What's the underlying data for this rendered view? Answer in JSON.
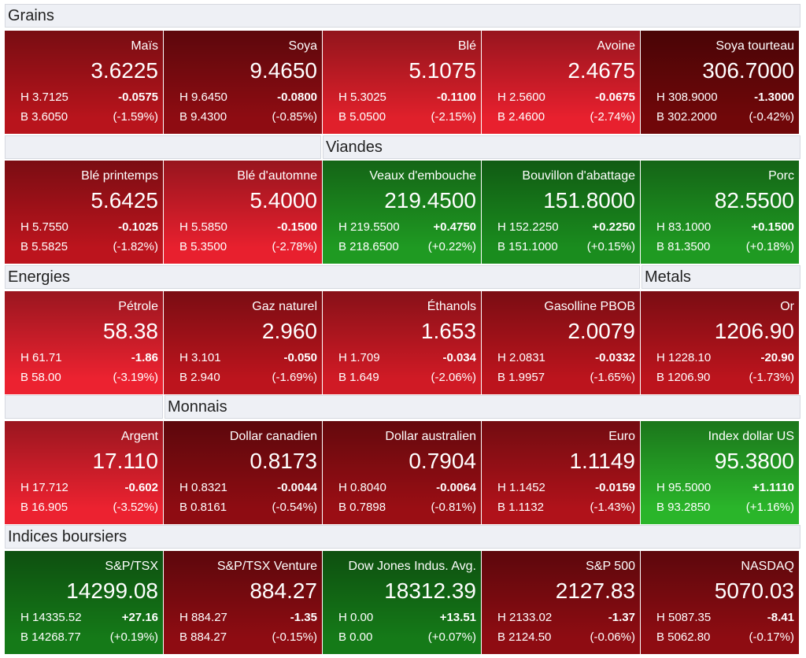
{
  "sections": [
    "Grains",
    "Viandes",
    "Energies",
    "Metals",
    "Monnais",
    "Indices boursiers"
  ],
  "rows": [
    [
      {
        "name": "Maïs",
        "price": "3.6225",
        "high": "H 3.7125",
        "low": "B 3.6050",
        "change": "-0.0575",
        "change_pct": "(-1.59%)",
        "color": "#b8141c"
      },
      {
        "name": "Soya",
        "price": "9.4650",
        "high": "H 9.6450",
        "low": "B 9.4300",
        "change": "-0.0800",
        "change_pct": "(-0.85%)",
        "color": "#8e0c12"
      },
      {
        "name": "Blé",
        "price": "5.1075",
        "high": "H 5.3025",
        "low": "B 5.0500",
        "change": "-0.1100",
        "change_pct": "(-2.15%)",
        "color": "#e0202b"
      },
      {
        "name": "Avoine",
        "price": "2.4675",
        "high": "H 2.5600",
        "low": "B 2.4600",
        "change": "-0.0675",
        "change_pct": "(-2.74%)",
        "color": "#e8202e"
      },
      {
        "name": "Soya tourteau",
        "price": "306.7000",
        "high": "H 308.9000",
        "low": "B 302.2000",
        "change": "-1.3000",
        "change_pct": "(-0.42%)",
        "color": "#700709"
      }
    ],
    [
      {
        "name": "Blé printemps",
        "price": "5.6425",
        "high": "H 5.7550",
        "low": "B 5.5825",
        "change": "-0.1025",
        "change_pct": "(-1.82%)",
        "color": "#bc141d"
      },
      {
        "name": "Blé d'automne",
        "price": "5.4000",
        "high": "H 5.5850",
        "low": "B 5.3500",
        "change": "-0.1500",
        "change_pct": "(-2.78%)",
        "color": "#e8202e"
      },
      {
        "name": "Veaux d'embouche",
        "price": "219.4500",
        "high": "H 219.5500",
        "low": "B 218.6500",
        "change": "+0.4750",
        "change_pct": "(+0.22%)",
        "color": "#1f9a22"
      },
      {
        "name": "Bouvillon d'abattage",
        "price": "151.8000",
        "high": "H 152.2250",
        "low": "B 151.1000",
        "change": "+0.2250",
        "change_pct": "(+0.15%)",
        "color": "#1a8c1e"
      },
      {
        "name": "Porc",
        "price": "82.5500",
        "high": "H 83.1000",
        "low": "B 81.3500",
        "change": "+0.1500",
        "change_pct": "(+0.18%)",
        "color": "#1f9a22"
      }
    ],
    [
      {
        "name": "Pétrole",
        "price": "58.38",
        "high": "H 61.71",
        "low": "B 58.00",
        "change": "-1.86",
        "change_pct": "(-3.19%)",
        "color": "#ec2230"
      },
      {
        "name": "Gaz naturel",
        "price": "2.960",
        "high": "H 3.101",
        "low": "B 2.940",
        "change": "-0.050",
        "change_pct": "(-1.69%)",
        "color": "#bc141d"
      },
      {
        "name": "Éthanols",
        "price": "1.653",
        "high": "H 1.709",
        "low": "B 1.649",
        "change": "-0.034",
        "change_pct": "(-2.06%)",
        "color": "#d01a25"
      },
      {
        "name": "Gasolline PBOB",
        "price": "2.0079",
        "high": "H 2.0831",
        "low": "B 1.9957",
        "change": "-0.0332",
        "change_pct": "(-1.65%)",
        "color": "#bc141d"
      },
      {
        "name": "Or",
        "price": "1206.90",
        "high": "H 1228.10",
        "low": "B 1206.90",
        "change": "-20.90",
        "change_pct": "(-1.73%)",
        "color": "#bc141d"
      }
    ],
    [
      {
        "name": "Argent",
        "price": "17.110",
        "high": "H 17.712",
        "low": "B 16.905",
        "change": "-0.602",
        "change_pct": "(-3.52%)",
        "color": "#ec2230"
      },
      {
        "name": "Dollar canadien",
        "price": "0.8173",
        "high": "H 0.8321",
        "low": "B 0.8161",
        "change": "-0.0044",
        "change_pct": "(-0.54%)",
        "color": "#8e0c12"
      },
      {
        "name": "Dollar australien",
        "price": "0.7904",
        "high": "H 0.8040",
        "low": "B 0.7898",
        "change": "-0.0064",
        "change_pct": "(-0.81%)",
        "color": "#9a0e14"
      },
      {
        "name": "Euro",
        "price": "1.1149",
        "high": "H 1.1452",
        "low": "B 1.1132",
        "change": "-0.0159",
        "change_pct": "(-1.43%)",
        "color": "#b0121a"
      },
      {
        "name": "Index dollar US",
        "price": "95.3800",
        "high": "H 95.5000",
        "low": "B 93.2850",
        "change": "+1.1110",
        "change_pct": "(+1.16%)",
        "color": "#2ab52a"
      }
    ],
    [
      {
        "name": "S&P/TSX",
        "price": "14299.08",
        "high": "H 14335.52",
        "low": "B 14268.77",
        "change": "+27.16",
        "change_pct": "(+0.19%)",
        "color": "#157a18"
      },
      {
        "name": "S&P/TSX Venture",
        "price": "884.27",
        "high": "H 884.27",
        "low": "B 884.27",
        "change": "-1.35",
        "change_pct": "(-0.15%)",
        "color": "#8e0c12"
      },
      {
        "name": "Dow Jones Indus. Avg.",
        "price": "18312.39",
        "high": "H 0.00",
        "low": "B 0.00",
        "change": "+13.51",
        "change_pct": "(+0.07%)",
        "color": "#157a18"
      },
      {
        "name": "S&P 500",
        "price": "2127.83",
        "high": "H 2133.02",
        "low": "B 2124.50",
        "change": "-1.37",
        "change_pct": "(-0.06%)",
        "color": "#8e0c12"
      },
      {
        "name": "NASDAQ",
        "price": "5070.03",
        "high": "H 5087.35",
        "low": "B 5062.80",
        "change": "-8.41",
        "change_pct": "(-0.17%)",
        "color": "#8e0c12"
      }
    ]
  ]
}
